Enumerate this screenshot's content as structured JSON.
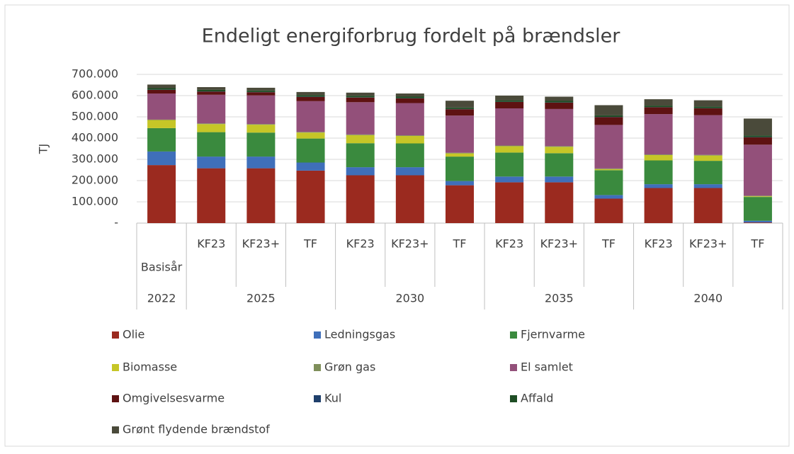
{
  "chart_data": {
    "type": "stacked-bar",
    "title": "Endeligt energiforbrug fordelt på brændsler",
    "y_label": "TJ",
    "groups": [
      {
        "name": "2022",
        "categories": [
          "Basisår"
        ]
      },
      {
        "name": "2025",
        "categories": [
          "KF23",
          "KF23+",
          "TF"
        ]
      },
      {
        "name": "2030",
        "categories": [
          "KF23",
          "KF23+",
          "TF"
        ]
      },
      {
        "name": "2035",
        "categories": [
          "KF23",
          "KF23+",
          "TF"
        ]
      },
      {
        "name": "2040",
        "categories": [
          "KF23",
          "KF23+",
          "TF"
        ]
      }
    ],
    "ylim": [
      0,
      700000
    ],
    "yticks": [
      {
        "value": 0,
        "label": "-"
      },
      {
        "value": 100000,
        "label": "100.000"
      },
      {
        "value": 200000,
        "label": "200.000"
      },
      {
        "value": 300000,
        "label": "300.000"
      },
      {
        "value": 400000,
        "label": "400.000"
      },
      {
        "value": 500000,
        "label": "500.000"
      },
      {
        "value": 600000,
        "label": "600.000"
      },
      {
        "value": 700000,
        "label": "700.000"
      }
    ],
    "grid": true,
    "series": [
      {
        "name": "Olie",
        "color": "#9b2a1f",
        "values": [
          273000,
          258000,
          258000,
          247000,
          225000,
          225000,
          178000,
          192000,
          192000,
          115000,
          165000,
          165000,
          3000
        ]
      },
      {
        "name": "Ledningsgas",
        "color": "#3f6fba",
        "values": [
          64000,
          55000,
          55000,
          38000,
          38000,
          38000,
          20000,
          27000,
          27000,
          17000,
          18000,
          18000,
          8000
        ]
      },
      {
        "name": "Fjernvarme",
        "color": "#3a8a3e",
        "values": [
          110000,
          115000,
          113000,
          113000,
          113000,
          112000,
          115000,
          113000,
          110000,
          117000,
          112000,
          110000,
          112000
        ]
      },
      {
        "name": "Biomasse",
        "color": "#c6c627",
        "values": [
          38000,
          38000,
          37000,
          28000,
          38000,
          35000,
          15000,
          30000,
          30000,
          5000,
          25000,
          25000,
          3000
        ]
      },
      {
        "name": "Grøn gas",
        "color": "#7f8f5a",
        "values": [
          2000,
          3000,
          3000,
          3000,
          3000,
          3000,
          3000,
          3000,
          3000,
          3000,
          3000,
          3000,
          3000
        ]
      },
      {
        "name": "El samlet",
        "color": "#93507a",
        "values": [
          123000,
          135000,
          135000,
          145000,
          152000,
          152000,
          175000,
          175000,
          175000,
          205000,
          190000,
          187000,
          240000
        ]
      },
      {
        "name": "Omgivelsesvarme",
        "color": "#5e1212",
        "values": [
          17000,
          15000,
          15000,
          20000,
          22000,
          22000,
          30000,
          30000,
          30000,
          37000,
          32000,
          32000,
          35000
        ]
      },
      {
        "name": "Kul",
        "color": "#1f3f6b",
        "values": [
          1000,
          1000,
          1000,
          1000,
          1000,
          1000,
          1000,
          1000,
          1000,
          1000,
          1000,
          1000,
          1000
        ]
      },
      {
        "name": "Affald",
        "color": "#1e4d24",
        "values": [
          7000,
          7000,
          7000,
          7000,
          7000,
          7000,
          7000,
          7000,
          7000,
          7000,
          7000,
          7000,
          7000
        ]
      },
      {
        "name": "Grønt flydende brændstof",
        "color": "#4a4a3a",
        "values": [
          17000,
          13000,
          13000,
          15000,
          15000,
          15000,
          32000,
          22000,
          20000,
          48000,
          30000,
          30000,
          80000
        ]
      }
    ]
  }
}
